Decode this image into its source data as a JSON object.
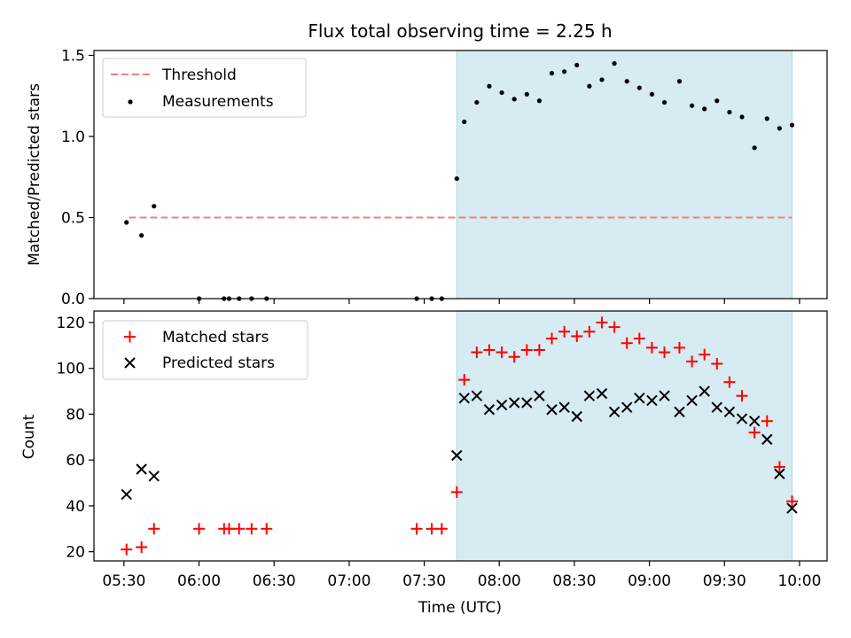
{
  "title": "Flux total observing time = 2.25 h",
  "chart_data": [
    {
      "type": "scatter",
      "ylabel": "Matched/Predicted stars",
      "ylim": [
        0,
        1.53
      ],
      "yticks": [
        0.0,
        0.5,
        1.0,
        1.5
      ],
      "ytick_labels": [
        "0.0",
        "0.5",
        "1.0",
        "1.5"
      ],
      "legend_position": "top-left",
      "legend": [
        {
          "label": "Threshold",
          "style": "dashed-line",
          "color": "#f08080"
        },
        {
          "label": "Measurements",
          "style": "dot",
          "color": "#000000"
        }
      ],
      "threshold": {
        "value": 0.5,
        "x_start": "05:32",
        "x_end": "09:57",
        "color": "#f08080"
      },
      "shaded_region": {
        "x_start": "07:43",
        "x_end": "09:57",
        "color": "#add8e6"
      },
      "series": [
        {
          "name": "Measurements",
          "marker": "dot",
          "color": "#000000",
          "x": [
            "05:31",
            "05:37",
            "05:42",
            "06:00",
            "06:10",
            "06:12",
            "06:16",
            "06:21",
            "06:27",
            "07:27",
            "07:33",
            "07:37",
            "07:43",
            "07:46",
            "07:51",
            "07:56",
            "08:01",
            "08:06",
            "08:11",
            "08:16",
            "08:21",
            "08:26",
            "08:31",
            "08:36",
            "08:41",
            "08:46",
            "08:51",
            "08:56",
            "09:01",
            "09:06",
            "09:12",
            "09:17",
            "09:22",
            "09:27",
            "09:32",
            "09:37",
            "09:42",
            "09:47",
            "09:52",
            "09:57"
          ],
          "y": [
            0.47,
            0.39,
            0.57,
            0.0,
            0.0,
            0.0,
            0.0,
            0.0,
            0.0,
            0.0,
            0.0,
            0.0,
            0.74,
            1.09,
            1.21,
            1.31,
            1.27,
            1.23,
            1.26,
            1.22,
            1.39,
            1.4,
            1.44,
            1.31,
            1.35,
            1.45,
            1.34,
            1.3,
            1.26,
            1.21,
            1.34,
            1.19,
            1.17,
            1.22,
            1.15,
            1.12,
            0.93,
            1.11,
            1.05,
            1.07
          ]
        }
      ]
    },
    {
      "type": "scatter",
      "xlabel": "Time (UTC)",
      "ylabel": "Count",
      "ylim": [
        16,
        125
      ],
      "yticks": [
        20,
        40,
        60,
        80,
        100,
        120
      ],
      "ytick_labels": [
        "20",
        "40",
        "60",
        "80",
        "100",
        "120"
      ],
      "xlim": [
        "05:18",
        "10:11"
      ],
      "xticks": [
        "05:30",
        "06:00",
        "06:30",
        "07:00",
        "07:30",
        "08:00",
        "08:30",
        "09:00",
        "09:30",
        "10:00"
      ],
      "legend_position": "top-left",
      "legend": [
        {
          "label": "Matched stars",
          "style": "plus",
          "color": "#ff0000"
        },
        {
          "label": "Predicted stars",
          "style": "x",
          "color": "#000000"
        }
      ],
      "shaded_region": {
        "x_start": "07:43",
        "x_end": "09:57",
        "color": "#add8e6"
      },
      "series": [
        {
          "name": "Matched stars",
          "marker": "plus",
          "color": "#ff0000",
          "x": [
            "05:31",
            "05:37",
            "05:42",
            "06:00",
            "06:10",
            "06:12",
            "06:16",
            "06:21",
            "06:27",
            "07:27",
            "07:33",
            "07:37",
            "07:43",
            "07:46",
            "07:51",
            "07:56",
            "08:01",
            "08:06",
            "08:11",
            "08:16",
            "08:21",
            "08:26",
            "08:31",
            "08:36",
            "08:41",
            "08:46",
            "08:51",
            "08:56",
            "09:01",
            "09:06",
            "09:12",
            "09:17",
            "09:22",
            "09:27",
            "09:32",
            "09:37",
            "09:42",
            "09:47",
            "09:52",
            "09:57"
          ],
          "y": [
            21,
            22,
            30,
            30,
            30,
            30,
            30,
            30,
            30,
            30,
            30,
            30,
            46,
            95,
            107,
            108,
            107,
            105,
            108,
            108,
            113,
            116,
            114,
            116,
            120,
            118,
            111,
            113,
            109,
            107,
            109,
            103,
            106,
            102,
            94,
            88,
            72,
            77,
            57,
            42
          ]
        },
        {
          "name": "Predicted stars",
          "marker": "x",
          "color": "#000000",
          "x": [
            "05:31",
            "05:37",
            "05:42",
            "07:43",
            "07:46",
            "07:51",
            "07:56",
            "08:01",
            "08:06",
            "08:11",
            "08:16",
            "08:21",
            "08:26",
            "08:31",
            "08:36",
            "08:41",
            "08:46",
            "08:51",
            "08:56",
            "09:01",
            "09:06",
            "09:12",
            "09:17",
            "09:22",
            "09:27",
            "09:32",
            "09:37",
            "09:42",
            "09:47",
            "09:52",
            "09:57"
          ],
          "y": [
            45,
            56,
            53,
            62,
            87,
            88,
            82,
            84,
            85,
            85,
            88,
            82,
            83,
            79,
            88,
            89,
            81,
            83,
            87,
            86,
            88,
            81,
            86,
            90,
            83,
            81,
            78,
            77,
            69,
            54,
            39
          ]
        }
      ]
    }
  ]
}
